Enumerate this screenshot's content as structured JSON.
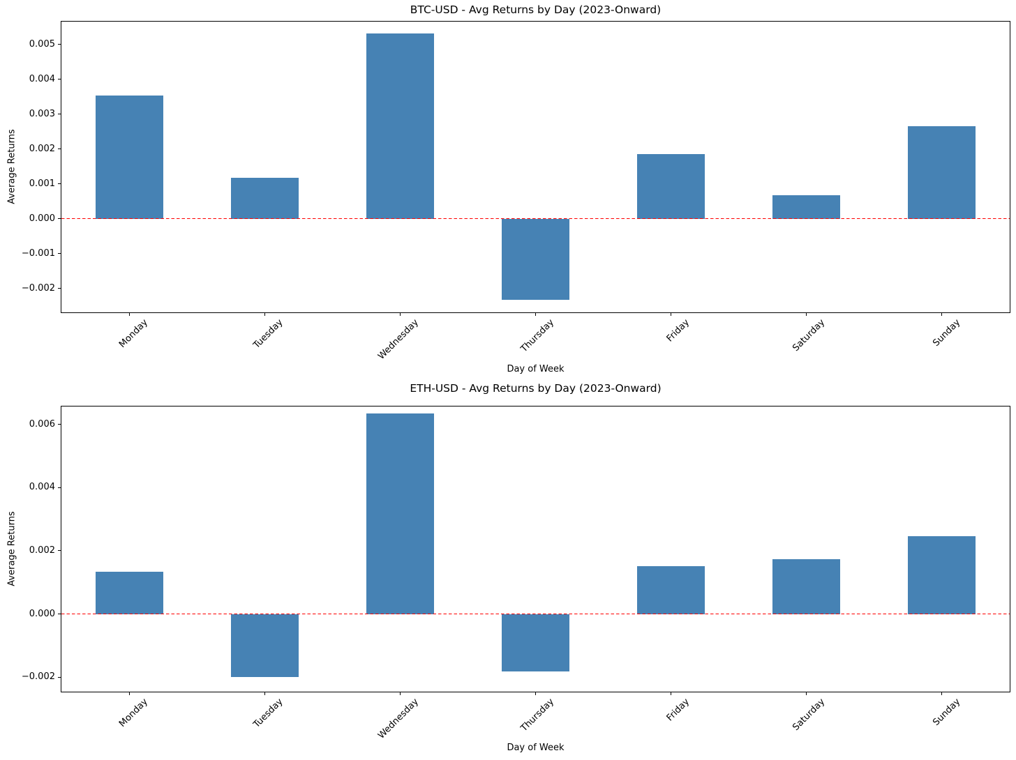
{
  "figure": {
    "background": "#ffffff",
    "bar_color": "#4682b4",
    "zero_line_color": "#ff0000",
    "spine_color": "#000000",
    "text_color": "#000000"
  },
  "chart_data": [
    {
      "type": "bar",
      "title": "BTC-USD - Avg Returns by Day (2023-Onward)",
      "xlabel": "Day of Week",
      "ylabel": "Average Returns",
      "categories": [
        "Monday",
        "Tuesday",
        "Wednesday",
        "Thursday",
        "Friday",
        "Saturday",
        "Sunday"
      ],
      "values": [
        0.00353,
        0.00117,
        0.00532,
        -0.00233,
        0.00185,
        0.00068,
        0.00265
      ],
      "ylim": [
        -0.00269,
        0.00566
      ],
      "yticks": [
        0.005,
        0.004,
        0.003,
        0.002,
        0.001,
        0.0,
        -0.001,
        -0.002
      ],
      "ytick_labels": [
        "0.005",
        "0.004",
        "0.003",
        "0.002",
        "0.001",
        "0.000",
        "−0.001",
        "−0.002"
      ],
      "zero_line": 0.0,
      "bar_width_frac": 0.5,
      "grid": false,
      "legend": null
    },
    {
      "type": "bar",
      "title": "ETH-USD - Avg Returns by Day (2023-Onward)",
      "xlabel": "Day of Week",
      "ylabel": "Average Returns",
      "categories": [
        "Monday",
        "Tuesday",
        "Wednesday",
        "Thursday",
        "Friday",
        "Saturday",
        "Sunday"
      ],
      "values": [
        0.00133,
        -0.002,
        0.00635,
        -0.00183,
        0.00152,
        0.00174,
        0.00246
      ],
      "ylim": [
        -0.00246,
        0.00657
      ],
      "yticks": [
        0.006,
        0.004,
        0.002,
        0.0,
        -0.002
      ],
      "ytick_labels": [
        "0.006",
        "0.004",
        "0.002",
        "0.000",
        "−0.002"
      ],
      "zero_line": 0.0,
      "bar_width_frac": 0.5,
      "grid": false,
      "legend": null
    }
  ]
}
